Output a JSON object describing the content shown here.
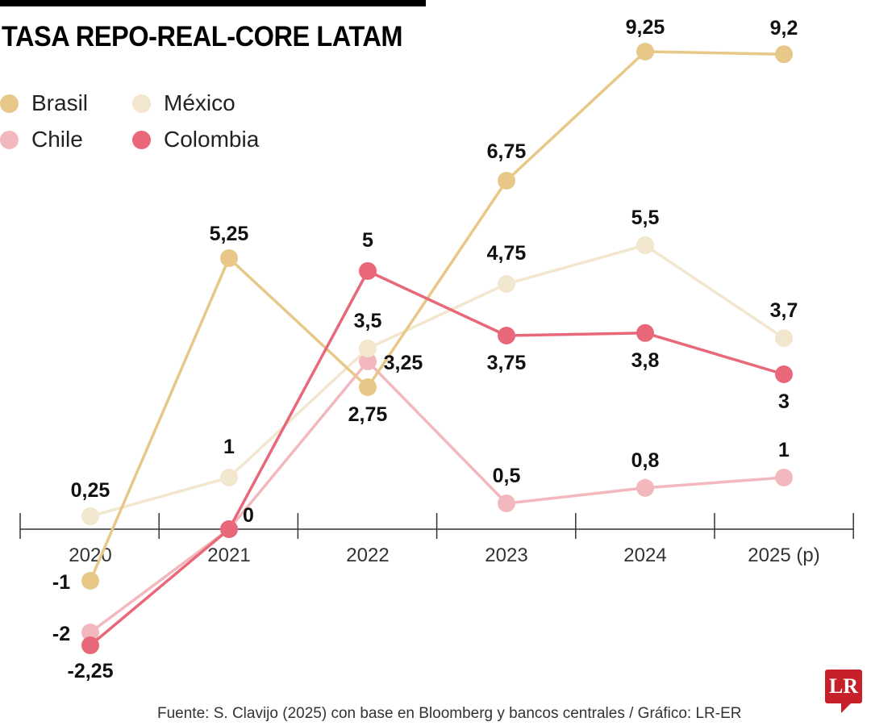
{
  "chart_data": {
    "type": "line",
    "title": "TASA REPO-REAL-CORE LATAM",
    "categories": [
      "2020",
      "2021",
      "2022",
      "2023",
      "2024",
      "2025 (p)"
    ],
    "ylim": [
      -2.5,
      9.5
    ],
    "grid": false,
    "legend_placement": "top-left",
    "series": [
      {
        "name": "Chile",
        "color": "#f2b8bd",
        "values": [
          -2,
          0,
          3.25,
          0.5,
          0.8,
          1
        ],
        "labels": [
          "-2",
          "",
          "3,25",
          "0,5",
          "0,8",
          "1"
        ]
      },
      {
        "name": "México",
        "color": "#f3e6cf",
        "values": [
          0.25,
          1,
          3.5,
          4.75,
          5.5,
          3.7
        ],
        "labels": [
          "0,25",
          "1",
          "3,5",
          "4,75",
          "5,5",
          "3,7"
        ]
      },
      {
        "name": "Brasil",
        "color": "#e8c888",
        "values": [
          -1,
          5.25,
          2.75,
          6.75,
          9.25,
          9.2
        ],
        "labels": [
          "-1",
          "5,25",
          "2,75",
          "6,75",
          "9,25",
          "9,2"
        ]
      },
      {
        "name": "Colombia",
        "color": "#e8687a",
        "values": [
          -2.25,
          0,
          5,
          3.75,
          3.8,
          3
        ],
        "labels": [
          "-2,25",
          "0",
          "5",
          "3,75",
          "3,8",
          "3"
        ]
      }
    ]
  },
  "legend": [
    {
      "name": "Brasil",
      "color": "#e8c888"
    },
    {
      "name": "México",
      "color": "#f3e6cf"
    },
    {
      "name": "Chile",
      "color": "#f2b8bd"
    },
    {
      "name": "Colombia",
      "color": "#e8687a"
    }
  ],
  "source": "Fuente: S. Clavijo (2025) con base en Bloomberg y bancos centrales / Gráfico: LR-ER",
  "logo": "LR"
}
